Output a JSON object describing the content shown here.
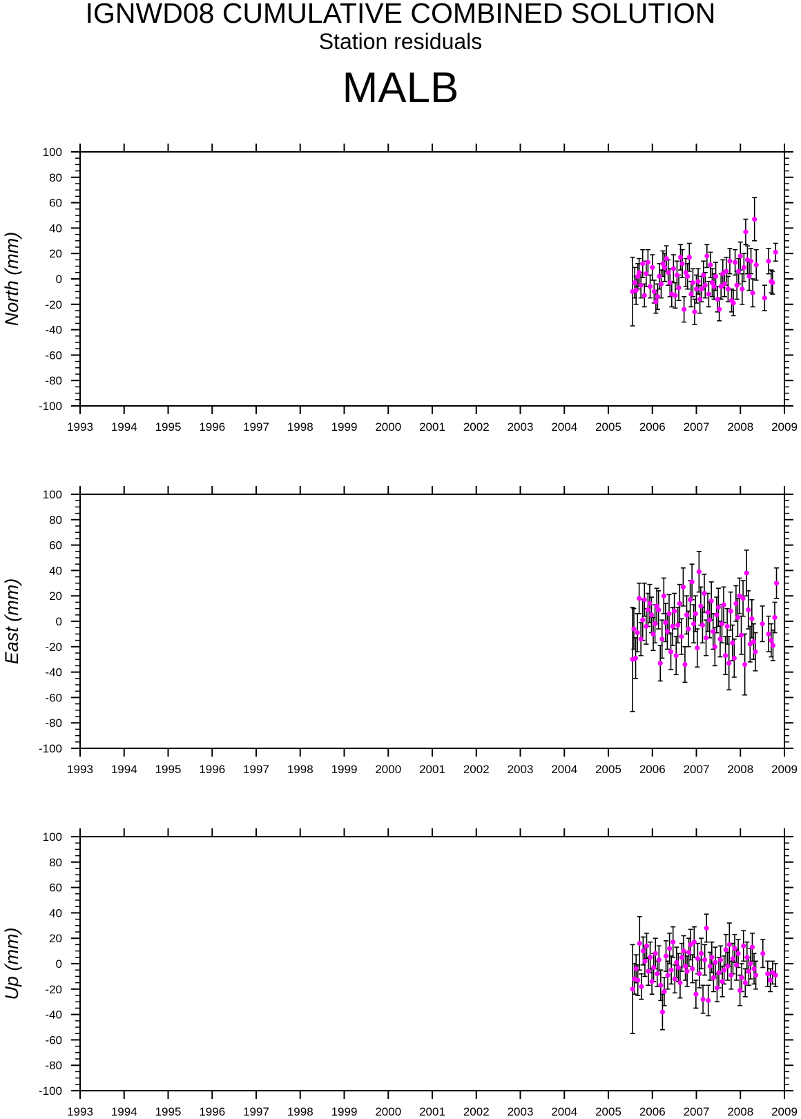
{
  "header": {
    "title": "IGNWD08 CUMULATIVE COMBINED SOLUTION",
    "subtitle": "Station residuals",
    "station": "MALB"
  },
  "style": {
    "point_color": "#ff00ff",
    "errorbar_color": "#000000",
    "axis_color": "#000000"
  },
  "chart_data": [
    {
      "type": "scatter",
      "component": "north",
      "ylabel": "North (mm)",
      "xlim": [
        1993,
        2009
      ],
      "ylim": [
        -100,
        100
      ],
      "xticks": [
        "1993",
        "1994",
        "1995",
        "1996",
        "1997",
        "1998",
        "1999",
        "2000",
        "2001",
        "2002",
        "2003",
        "2004",
        "2005",
        "2006",
        "2007",
        "2008",
        "2009"
      ],
      "yticks": [
        "100",
        "80",
        "60",
        "40",
        "20",
        "0",
        "-20",
        "-40",
        "-60",
        "-80",
        "-100"
      ],
      "points": [
        [
          2005.55,
          -10,
          27
        ],
        [
          2005.6,
          -3,
          12
        ],
        [
          2005.63,
          -9,
          11
        ],
        [
          2005.67,
          2,
          10
        ],
        [
          2005.7,
          5,
          11
        ],
        [
          2005.74,
          -5,
          10
        ],
        [
          2005.78,
          12,
          11
        ],
        [
          2005.82,
          -13,
          9
        ],
        [
          2005.86,
          4,
          10
        ],
        [
          2005.9,
          13,
          10
        ],
        [
          2005.95,
          -6,
          9
        ],
        [
          2006.0,
          9,
          10
        ],
        [
          2006.04,
          -10,
          9
        ],
        [
          2006.08,
          -18,
          9
        ],
        [
          2006.12,
          -14,
          10
        ],
        [
          2006.16,
          2,
          10
        ],
        [
          2006.2,
          -4,
          11
        ],
        [
          2006.24,
          12,
          10
        ],
        [
          2006.28,
          9,
          11
        ],
        [
          2006.32,
          16,
          10
        ],
        [
          2006.36,
          5,
          10
        ],
        [
          2006.4,
          -3,
          11
        ],
        [
          2006.44,
          -12,
          10
        ],
        [
          2006.48,
          8,
          11
        ],
        [
          2006.52,
          -13,
          10
        ],
        [
          2006.56,
          3,
          11
        ],
        [
          2006.6,
          -7,
          10
        ],
        [
          2006.64,
          17,
          10
        ],
        [
          2006.68,
          12,
          11
        ],
        [
          2006.72,
          -24,
          10
        ],
        [
          2006.76,
          5,
          11
        ],
        [
          2006.8,
          2,
          10
        ],
        [
          2006.84,
          17,
          11
        ],
        [
          2006.88,
          -12,
          10
        ],
        [
          2006.92,
          -3,
          11
        ],
        [
          2006.96,
          -26,
          10
        ],
        [
          2007.0,
          -8,
          11
        ],
        [
          2007.04,
          -2,
          10
        ],
        [
          2007.08,
          -16,
          11
        ],
        [
          2007.12,
          -8,
          10
        ],
        [
          2007.16,
          3,
          11
        ],
        [
          2007.2,
          -5,
          10
        ],
        [
          2007.24,
          18,
          9
        ],
        [
          2007.28,
          -12,
          10
        ],
        [
          2007.32,
          11,
          10
        ],
        [
          2007.36,
          -3,
          11
        ],
        [
          2007.4,
          -6,
          10
        ],
        [
          2007.44,
          2,
          11
        ],
        [
          2007.48,
          -16,
          10
        ],
        [
          2007.52,
          -24,
          9
        ],
        [
          2007.56,
          -6,
          10
        ],
        [
          2007.6,
          4,
          11
        ],
        [
          2007.64,
          -4,
          10
        ],
        [
          2007.68,
          6,
          11
        ],
        [
          2007.72,
          -8,
          10
        ],
        [
          2007.76,
          14,
          10
        ],
        [
          2007.8,
          -17,
          9
        ],
        [
          2007.84,
          -19,
          10
        ],
        [
          2007.88,
          13,
          10
        ],
        [
          2007.92,
          -5,
          11
        ],
        [
          2007.96,
          6,
          10
        ],
        [
          2008.0,
          18,
          11
        ],
        [
          2008.04,
          -8,
          12
        ],
        [
          2008.08,
          9,
          11
        ],
        [
          2008.12,
          37,
          10
        ],
        [
          2008.16,
          15,
          11
        ],
        [
          2008.2,
          2,
          11
        ],
        [
          2008.24,
          14,
          10
        ],
        [
          2008.28,
          -11,
          11
        ],
        [
          2008.32,
          47,
          17
        ],
        [
          2008.36,
          11,
          12
        ],
        [
          2008.55,
          -15,
          10
        ],
        [
          2008.64,
          14,
          10
        ],
        [
          2008.7,
          -2,
          9
        ],
        [
          2008.73,
          -3,
          9
        ],
        [
          2008.8,
          21,
          7
        ]
      ]
    },
    {
      "type": "scatter",
      "component": "east",
      "ylabel": "East (mm)",
      "xlim": [
        1993,
        2009
      ],
      "ylim": [
        -100,
        100
      ],
      "xticks": [
        "1993",
        "1994",
        "1995",
        "1996",
        "1997",
        "1998",
        "1999",
        "2000",
        "2001",
        "2002",
        "2003",
        "2004",
        "2005",
        "2006",
        "2007",
        "2008",
        "2009"
      ],
      "yticks": [
        "100",
        "80",
        "60",
        "40",
        "20",
        "0",
        "-20",
        "-40",
        "-60",
        "-80",
        "-100"
      ],
      "points": [
        [
          2005.55,
          -30,
          41
        ],
        [
          2005.58,
          -6,
          16
        ],
        [
          2005.62,
          -29,
          16
        ],
        [
          2005.66,
          -9,
          15
        ],
        [
          2005.7,
          18,
          12
        ],
        [
          2005.74,
          -14,
          13
        ],
        [
          2005.78,
          1,
          16
        ],
        [
          2005.82,
          17,
          13
        ],
        [
          2005.86,
          -4,
          14
        ],
        [
          2005.9,
          9,
          13
        ],
        [
          2005.94,
          14,
          15
        ],
        [
          2005.98,
          5,
          14
        ],
        [
          2006.02,
          -10,
          13
        ],
        [
          2006.06,
          -2,
          15
        ],
        [
          2006.1,
          12,
          14
        ],
        [
          2006.14,
          9,
          15
        ],
        [
          2006.18,
          -33,
          14
        ],
        [
          2006.22,
          -14,
          15
        ],
        [
          2006.26,
          20,
          14
        ],
        [
          2006.3,
          -1,
          15
        ],
        [
          2006.34,
          -8,
          14
        ],
        [
          2006.38,
          6,
          15
        ],
        [
          2006.42,
          -24,
          14
        ],
        [
          2006.46,
          -4,
          15
        ],
        [
          2006.5,
          8,
          14
        ],
        [
          2006.54,
          -27,
          15
        ],
        [
          2006.58,
          -3,
          14
        ],
        [
          2006.62,
          14,
          15
        ],
        [
          2006.66,
          -12,
          14
        ],
        [
          2006.7,
          27,
          15
        ],
        [
          2006.74,
          -34,
          14
        ],
        [
          2006.78,
          5,
          15
        ],
        [
          2006.82,
          -6,
          14
        ],
        [
          2006.86,
          17,
          15
        ],
        [
          2006.9,
          31,
          14
        ],
        [
          2006.94,
          -2,
          15
        ],
        [
          2006.98,
          6,
          14
        ],
        [
          2007.02,
          -21,
          15
        ],
        [
          2007.06,
          39,
          16
        ],
        [
          2007.1,
          12,
          15
        ],
        [
          2007.14,
          -3,
          14
        ],
        [
          2007.18,
          22,
          15
        ],
        [
          2007.22,
          -13,
          14
        ],
        [
          2007.26,
          7,
          15
        ],
        [
          2007.3,
          1,
          14
        ],
        [
          2007.34,
          16,
          15
        ],
        [
          2007.38,
          -8,
          14
        ],
        [
          2007.42,
          -20,
          15
        ],
        [
          2007.46,
          5,
          14
        ],
        [
          2007.5,
          11,
          15
        ],
        [
          2007.54,
          -14,
          14
        ],
        [
          2007.58,
          -2,
          15
        ],
        [
          2007.62,
          13,
          14
        ],
        [
          2007.66,
          -27,
          15
        ],
        [
          2007.7,
          -4,
          14
        ],
        [
          2007.74,
          -33,
          21
        ],
        [
          2007.78,
          8,
          15
        ],
        [
          2007.82,
          -17,
          14
        ],
        [
          2007.86,
          -29,
          15
        ],
        [
          2007.9,
          14,
          14
        ],
        [
          2007.94,
          3,
          15
        ],
        [
          2007.98,
          20,
          14
        ],
        [
          2008.02,
          -11,
          15
        ],
        [
          2008.06,
          18,
          14
        ],
        [
          2008.1,
          -34,
          24
        ],
        [
          2008.14,
          38,
          18
        ],
        [
          2008.18,
          9,
          15
        ],
        [
          2008.22,
          -18,
          14
        ],
        [
          2008.26,
          2,
          15
        ],
        [
          2008.3,
          -16,
          14
        ],
        [
          2008.34,
          -24,
          15
        ],
        [
          2008.5,
          -2,
          14
        ],
        [
          2008.64,
          -10,
          14
        ],
        [
          2008.7,
          -15,
          13
        ],
        [
          2008.74,
          -19,
          12
        ],
        [
          2008.78,
          3,
          12
        ],
        [
          2008.82,
          30,
          12
        ]
      ]
    },
    {
      "type": "scatter",
      "component": "up",
      "ylabel": "Up (mm)",
      "xlim": [
        1993,
        2009
      ],
      "ylim": [
        -100,
        100
      ],
      "xticks": [
        "1993",
        "1994",
        "1995",
        "1996",
        "1997",
        "1998",
        "1999",
        "2000",
        "2001",
        "2002",
        "2003",
        "2004",
        "2005",
        "2006",
        "2007",
        "2008",
        "2009"
      ],
      "yticks": [
        "100",
        "80",
        "60",
        "40",
        "20",
        "0",
        "-20",
        "-40",
        "-60",
        "-80",
        "-100"
      ],
      "points": [
        [
          2005.55,
          -20,
          35
        ],
        [
          2005.59,
          -12,
          12
        ],
        [
          2005.63,
          -4,
          11
        ],
        [
          2005.67,
          -13,
          12
        ],
        [
          2005.71,
          16,
          21
        ],
        [
          2005.75,
          -18,
          10
        ],
        [
          2005.79,
          10,
          11
        ],
        [
          2005.83,
          2,
          12
        ],
        [
          2005.87,
          14,
          10
        ],
        [
          2005.91,
          -6,
          11
        ],
        [
          2005.95,
          5,
          12
        ],
        [
          2005.99,
          -14,
          10
        ],
        [
          2006.03,
          -3,
          11
        ],
        [
          2006.07,
          8,
          12
        ],
        [
          2006.11,
          -8,
          10
        ],
        [
          2006.15,
          3,
          11
        ],
        [
          2006.19,
          -17,
          12
        ],
        [
          2006.23,
          -38,
          14
        ],
        [
          2006.27,
          -22,
          11
        ],
        [
          2006.31,
          6,
          12
        ],
        [
          2006.35,
          -9,
          11
        ],
        [
          2006.39,
          12,
          12
        ],
        [
          2006.43,
          -5,
          11
        ],
        [
          2006.47,
          17,
          12
        ],
        [
          2006.51,
          -12,
          11
        ],
        [
          2006.55,
          1,
          12
        ],
        [
          2006.59,
          -3,
          11
        ],
        [
          2006.63,
          -15,
          12
        ],
        [
          2006.67,
          5,
          11
        ],
        [
          2006.71,
          10,
          12
        ],
        [
          2006.75,
          -2,
          11
        ],
        [
          2006.79,
          -6,
          12
        ],
        [
          2006.83,
          9,
          11
        ],
        [
          2006.87,
          15,
          12
        ],
        [
          2006.91,
          -4,
          11
        ],
        [
          2006.95,
          17,
          12
        ],
        [
          2006.99,
          -24,
          11
        ],
        [
          2007.03,
          4,
          12
        ],
        [
          2007.07,
          -8,
          11
        ],
        [
          2007.11,
          8,
          12
        ],
        [
          2007.15,
          -28,
          11
        ],
        [
          2007.19,
          3,
          12
        ],
        [
          2007.23,
          28,
          11
        ],
        [
          2007.27,
          -29,
          12
        ],
        [
          2007.31,
          -2,
          11
        ],
        [
          2007.35,
          5,
          12
        ],
        [
          2007.39,
          -11,
          11
        ],
        [
          2007.43,
          1,
          12
        ],
        [
          2007.47,
          -19,
          11
        ],
        [
          2007.51,
          -7,
          12
        ],
        [
          2007.55,
          3,
          11
        ],
        [
          2007.59,
          -14,
          12
        ],
        [
          2007.63,
          -5,
          11
        ],
        [
          2007.67,
          11,
          12
        ],
        [
          2007.71,
          -2,
          11
        ],
        [
          2007.75,
          15,
          17
        ],
        [
          2007.79,
          -9,
          11
        ],
        [
          2007.83,
          4,
          12
        ],
        [
          2007.87,
          12,
          11
        ],
        [
          2007.91,
          -1,
          12
        ],
        [
          2007.95,
          8,
          11
        ],
        [
          2007.99,
          -21,
          12
        ],
        [
          2008.03,
          -11,
          11
        ],
        [
          2008.07,
          14,
          12
        ],
        [
          2008.11,
          -15,
          11
        ],
        [
          2008.15,
          5,
          12
        ],
        [
          2008.19,
          -6,
          11
        ],
        [
          2008.23,
          0,
          12
        ],
        [
          2008.27,
          13,
          11
        ],
        [
          2008.31,
          -4,
          12
        ],
        [
          2008.35,
          -9,
          11
        ],
        [
          2008.51,
          8,
          11
        ],
        [
          2008.62,
          -8,
          10
        ],
        [
          2008.68,
          -13,
          9
        ],
        [
          2008.73,
          -7,
          9
        ],
        [
          2008.8,
          -9,
          9
        ]
      ]
    }
  ]
}
